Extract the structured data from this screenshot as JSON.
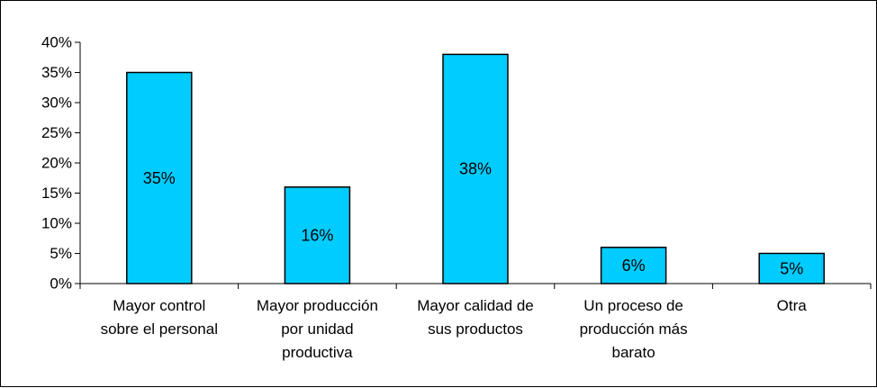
{
  "chart_data": {
    "type": "bar",
    "title": "",
    "xlabel": "",
    "ylabel": "",
    "categories": [
      [
        "Mayor control",
        "sobre el personal"
      ],
      [
        "Mayor producción",
        "por unidad",
        "productiva"
      ],
      [
        "Mayor calidad de",
        "sus productos"
      ],
      [
        "Un proceso de",
        "producción más",
        "barato"
      ],
      [
        "Otra"
      ]
    ],
    "values": [
      0.35,
      0.16,
      0.38,
      0.06,
      0.05
    ],
    "data_labels": [
      "35%",
      "16%",
      "38%",
      "6%",
      "5%"
    ],
    "ylim": [
      0,
      0.4
    ],
    "y_ticks": [
      0,
      0.05,
      0.1,
      0.15,
      0.2,
      0.25,
      0.3,
      0.35,
      0.4
    ],
    "y_tick_labels": [
      "0%",
      "5%",
      "10%",
      "15%",
      "20%",
      "25%",
      "30%",
      "35%",
      "40%"
    ],
    "grid": false,
    "legend": "none",
    "colors": {
      "bar_fill": "#00CCFF",
      "bar_stroke": "#000000",
      "axis": "#000000",
      "background": "#FFFFFF"
    }
  }
}
